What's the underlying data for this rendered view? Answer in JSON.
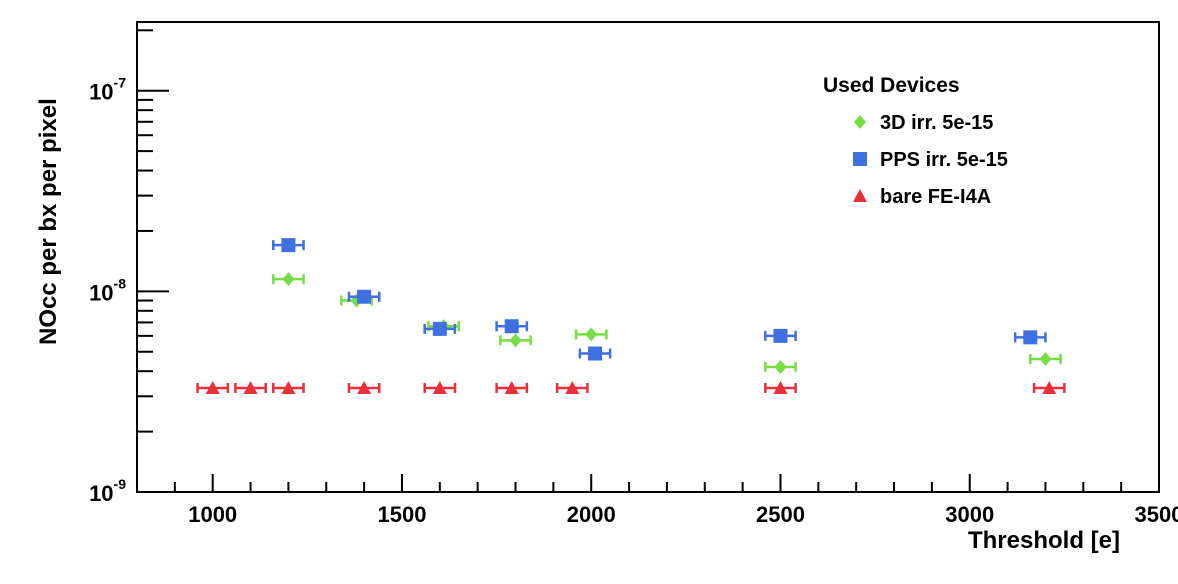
{
  "chart_data": {
    "type": "scatter",
    "xlabel": "Threshold [e]",
    "ylabel": "NOcc per bx per pixel",
    "xlim": [
      800,
      3500
    ],
    "ylim": [
      1e-09,
      2.2e-07
    ],
    "yscale": "log",
    "x_ticks": [
      1000,
      1500,
      2000,
      2500,
      3000,
      3500
    ],
    "x_tick_labels": [
      "1000",
      "1500",
      "2000",
      "2500",
      "3000",
      "3500"
    ],
    "y_ticks": [
      1e-09,
      1e-08,
      1e-07
    ],
    "y_tick_labels": [
      {
        "base": "10",
        "exp": "-9"
      },
      {
        "base": "10",
        "exp": "-8"
      },
      {
        "base": "10",
        "exp": "-7"
      }
    ],
    "grid": false,
    "legend": {
      "title": "Used Devices",
      "placement": "top-right"
    },
    "series": [
      {
        "name": "3D irr. 5e-15",
        "marker": "diamond",
        "color": "#77dd44",
        "points": [
          {
            "x": 1200,
            "y": 1.15e-08,
            "xerr": 40
          },
          {
            "x": 1380,
            "y": 9e-09,
            "xerr": 40
          },
          {
            "x": 1610,
            "y": 6.7e-09,
            "xerr": 40
          },
          {
            "x": 1800,
            "y": 5.7e-09,
            "xerr": 40
          },
          {
            "x": 2000,
            "y": 6.1e-09,
            "xerr": 40
          },
          {
            "x": 2500,
            "y": 4.2e-09,
            "xerr": 40
          },
          {
            "x": 3200,
            "y": 4.6e-09,
            "xerr": 40
          }
        ]
      },
      {
        "name": "PPS irr. 5e-15",
        "marker": "square",
        "color": "#3f6fe0",
        "points": [
          {
            "x": 1200,
            "y": 1.7e-08,
            "xerr": 40
          },
          {
            "x": 1400,
            "y": 9.4e-09,
            "xerr": 40
          },
          {
            "x": 1600,
            "y": 6.5e-09,
            "xerr": 40
          },
          {
            "x": 1790,
            "y": 6.7e-09,
            "xerr": 40
          },
          {
            "x": 2010,
            "y": 4.9e-09,
            "xerr": 40
          },
          {
            "x": 2500,
            "y": 6e-09,
            "xerr": 40
          },
          {
            "x": 3160,
            "y": 5.9e-09,
            "xerr": 40
          }
        ]
      },
      {
        "name": "bare FE-I4A",
        "marker": "triangle",
        "color": "#e8303a",
        "points": [
          {
            "x": 1000,
            "y": 3.3e-09,
            "xerr": 40
          },
          {
            "x": 1100,
            "y": 3.3e-09,
            "xerr": 40
          },
          {
            "x": 1200,
            "y": 3.3e-09,
            "xerr": 40
          },
          {
            "x": 1400,
            "y": 3.3e-09,
            "xerr": 40
          },
          {
            "x": 1600,
            "y": 3.3e-09,
            "xerr": 40
          },
          {
            "x": 1790,
            "y": 3.3e-09,
            "xerr": 40
          },
          {
            "x": 1950,
            "y": 3.3e-09,
            "xerr": 40
          },
          {
            "x": 2500,
            "y": 3.3e-09,
            "xerr": 40
          },
          {
            "x": 3210,
            "y": 3.3e-09,
            "xerr": 40
          }
        ]
      }
    ]
  }
}
